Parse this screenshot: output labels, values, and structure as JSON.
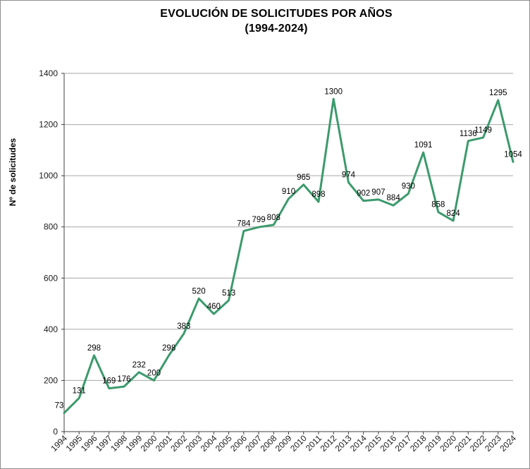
{
  "window": {
    "background": "#ffffff",
    "border_color": "#8f8f8f"
  },
  "chart_data": {
    "type": "line",
    "title": "EVOLUCIÓN DE SOLICITUDES POR AÑOS",
    "subtitle": "(1994-2024)",
    "ylabel": "Nº de solicitudes",
    "xlabel": "",
    "categories": [
      "1994",
      "1995",
      "1996",
      "1997",
      "1998",
      "1999",
      "2000",
      "2001",
      "2002",
      "2003",
      "2004",
      "2005",
      "2006",
      "2007",
      "2008",
      "2009",
      "2010",
      "2011",
      "2012",
      "2013",
      "2014",
      "2015",
      "2016",
      "2017",
      "2018",
      "2019",
      "2020",
      "2021",
      "2022",
      "2023",
      "2024"
    ],
    "values": [
      73,
      131,
      298,
      169,
      176,
      232,
      200,
      298,
      383,
      520,
      460,
      513,
      784,
      799,
      808,
      910,
      965,
      898,
      1300,
      974,
      902,
      907,
      884,
      930,
      1091,
      858,
      824,
      1136,
      1149,
      1295,
      1054
    ],
    "ylim": [
      0,
      1400
    ],
    "yticks": [
      0,
      200,
      400,
      600,
      800,
      1000,
      1200,
      1400
    ],
    "grid": "horizontal",
    "legend": "none",
    "data_labels": true,
    "line_color": "#3C9A6C",
    "gridline_color": "#A6A6A6",
    "axis_color": "#404040",
    "text_color": "#000000"
  }
}
